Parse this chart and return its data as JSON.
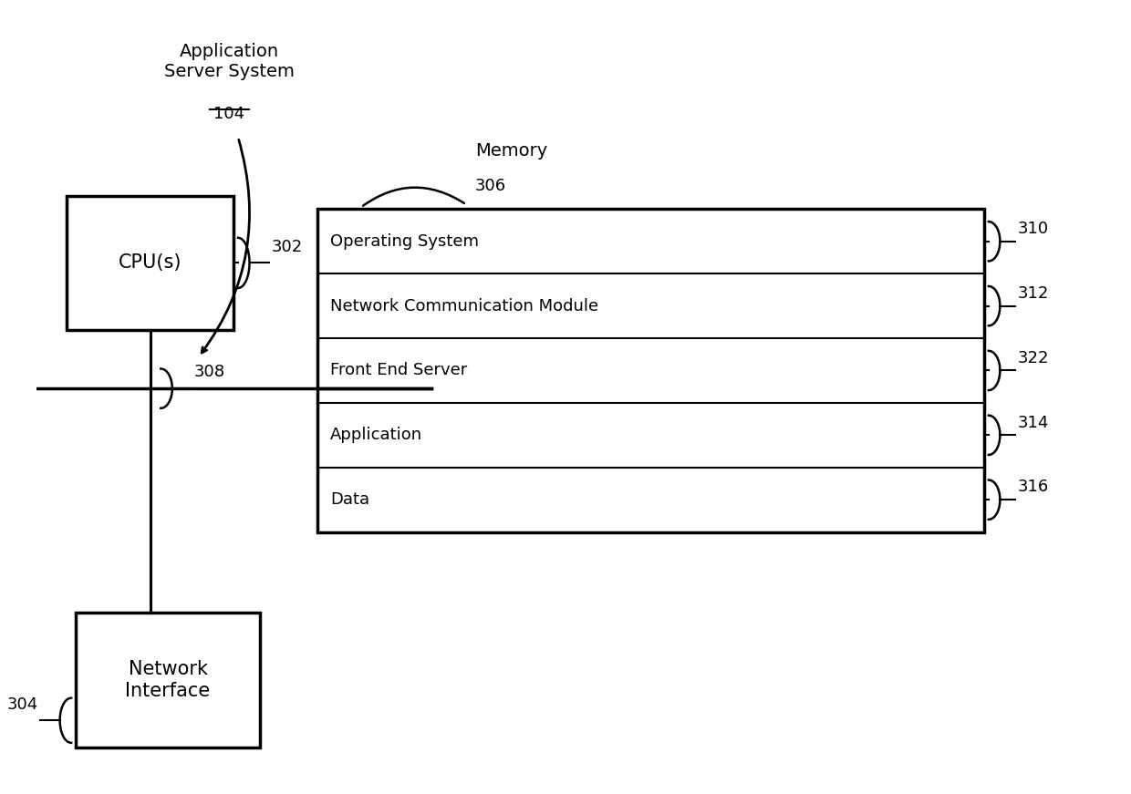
{
  "bg_color": "#ffffff",
  "title_label": "Application\nServer System",
  "title_ref": "104",
  "cpu_label": "CPU(s)",
  "cpu_ref": "302",
  "bus_ref": "308",
  "memory_label": "Memory",
  "memory_ref": "306",
  "network_label": "Network\nInterface",
  "network_ref": "304",
  "memory_rows": [
    {
      "label": "Operating System",
      "ref": "310"
    },
    {
      "label": "Network Communication Module",
      "ref": "312"
    },
    {
      "label": "Front End Server",
      "ref": "322"
    },
    {
      "label": "Application",
      "ref": "314"
    },
    {
      "label": "Data",
      "ref": "316"
    }
  ],
  "line_color": "#000000",
  "text_color": "#000000",
  "font_size_label": 14,
  "font_size_ref": 13,
  "font_size_memory": 13
}
